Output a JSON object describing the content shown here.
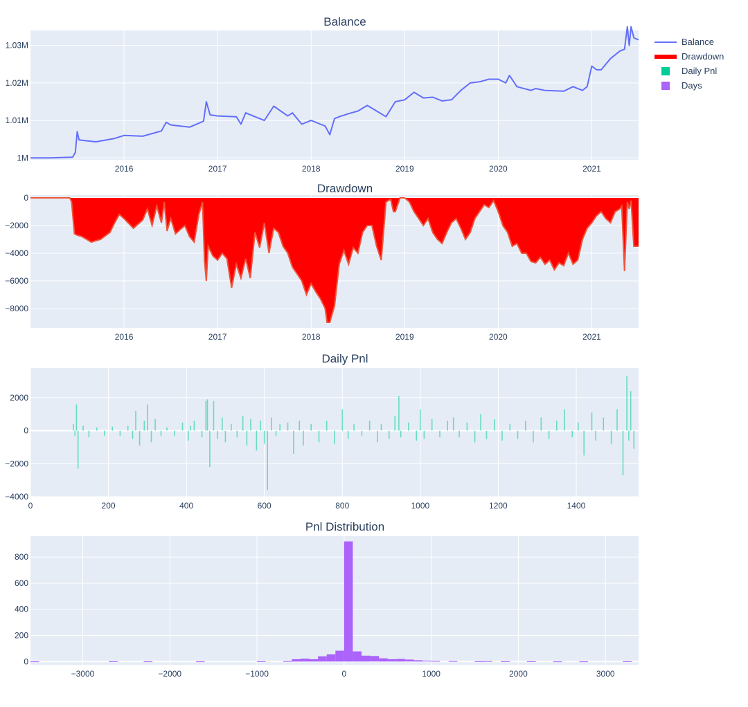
{
  "colors": {
    "plot_bg": "#e5ecf6",
    "grid": "#ffffff",
    "text": "#2a3f5f",
    "balance": "#636efa",
    "drawdown": "#ff0000",
    "drawdown_line": "#ef553b",
    "daily_pnl": "#00cc96",
    "days": "#ab63fa"
  },
  "legend": {
    "position": "top-right",
    "items": [
      {
        "label": "Balance",
        "kind": "line",
        "color": "#636efa"
      },
      {
        "label": "Drawdown",
        "kind": "thickline",
        "color": "#ff0000"
      },
      {
        "label": "Daily Pnl",
        "kind": "square",
        "color": "#00cc96"
      },
      {
        "label": "Days",
        "kind": "square",
        "color": "#ab63fa"
      }
    ]
  },
  "chart_data": [
    {
      "id": "balance",
      "type": "line",
      "title": "Balance",
      "xlabel": "",
      "ylabel": "",
      "xlim": [
        2015.0,
        2021.5
      ],
      "ylim": [
        999500,
        1034000
      ],
      "xticks": [
        2016,
        2017,
        2018,
        2019,
        2020,
        2021
      ],
      "xtick_labels": [
        "2016",
        "2017",
        "2018",
        "2019",
        "2020",
        "2021"
      ],
      "yticks": [
        1000000,
        1010000,
        1020000,
        1030000
      ],
      "ytick_labels": [
        "1M",
        "1.01M",
        "1.02M",
        "1.03M"
      ],
      "grid": true,
      "series": [
        {
          "name": "Balance",
          "x": [
            2015.0,
            2015.2,
            2015.45,
            2015.48,
            2015.5,
            2015.52,
            2015.55,
            2015.7,
            2015.9,
            2016.0,
            2016.2,
            2016.4,
            2016.45,
            2016.5,
            2016.7,
            2016.85,
            2016.88,
            2016.92,
            2017.0,
            2017.2,
            2017.25,
            2017.3,
            2017.4,
            2017.5,
            2017.6,
            2017.75,
            2017.8,
            2017.9,
            2018.0,
            2018.1,
            2018.15,
            2018.2,
            2018.25,
            2018.3,
            2018.4,
            2018.5,
            2018.6,
            2018.7,
            2018.8,
            2018.9,
            2019.0,
            2019.1,
            2019.2,
            2019.3,
            2019.4,
            2019.5,
            2019.6,
            2019.7,
            2019.8,
            2019.9,
            2020.0,
            2020.08,
            2020.12,
            2020.2,
            2020.35,
            2020.4,
            2020.5,
            2020.7,
            2020.8,
            2020.9,
            2020.95,
            2021.0,
            2021.05,
            2021.1,
            2021.2,
            2021.3,
            2021.35,
            2021.38,
            2021.4,
            2021.42,
            2021.45,
            2021.5
          ],
          "y": [
            1000000,
            1000000,
            1000200,
            1001500,
            1007000,
            1004800,
            1004700,
            1004300,
            1005200,
            1006000,
            1005800,
            1007200,
            1009500,
            1008800,
            1008200,
            1009800,
            1015000,
            1011500,
            1011200,
            1011000,
            1009000,
            1012000,
            1011000,
            1010000,
            1013800,
            1011200,
            1012000,
            1009000,
            1010000,
            1009000,
            1008500,
            1006200,
            1010500,
            1011000,
            1011800,
            1012500,
            1014000,
            1012500,
            1011000,
            1015000,
            1015500,
            1017500,
            1016000,
            1016200,
            1015200,
            1015500,
            1018000,
            1020000,
            1020300,
            1021000,
            1021000,
            1020000,
            1022000,
            1019000,
            1018000,
            1018500,
            1018000,
            1017800,
            1019000,
            1018000,
            1019000,
            1024500,
            1023500,
            1023500,
            1026500,
            1028500,
            1029000,
            1035000,
            1030000,
            1035000,
            1032000,
            1031500
          ]
        }
      ]
    },
    {
      "id": "drawdown",
      "type": "area",
      "title": "Drawdown",
      "xlabel": "",
      "ylabel": "",
      "xlim": [
        2015.0,
        2021.5
      ],
      "ylim": [
        -9400,
        200
      ],
      "xticks": [
        2016,
        2017,
        2018,
        2019,
        2020,
        2021
      ],
      "xtick_labels": [
        "2016",
        "2017",
        "2018",
        "2019",
        "2020",
        "2021"
      ],
      "yticks": [
        0,
        -2000,
        -4000,
        -6000,
        -8000
      ],
      "ytick_labels": [
        "0",
        "−2000",
        "−4000",
        "−6000",
        "−8000"
      ],
      "grid": true,
      "series": [
        {
          "name": "Drawdown",
          "x": [
            2015.0,
            2015.42,
            2015.44,
            2015.47,
            2015.5,
            2015.55,
            2015.65,
            2015.75,
            2015.85,
            2015.9,
            2015.95,
            2016.0,
            2016.1,
            2016.2,
            2016.25,
            2016.3,
            2016.35,
            2016.4,
            2016.43,
            2016.46,
            2016.5,
            2016.55,
            2016.6,
            2016.65,
            2016.7,
            2016.75,
            2016.8,
            2016.84,
            2016.86,
            2016.88,
            2016.9,
            2016.95,
            2017.0,
            2017.05,
            2017.1,
            2017.15,
            2017.2,
            2017.25,
            2017.3,
            2017.35,
            2017.4,
            2017.45,
            2017.5,
            2017.55,
            2017.6,
            2017.65,
            2017.7,
            2017.75,
            2017.8,
            2017.85,
            2017.9,
            2017.95,
            2018.0,
            2018.05,
            2018.1,
            2018.15,
            2018.17,
            2018.2,
            2018.25,
            2018.3,
            2018.35,
            2018.4,
            2018.45,
            2018.5,
            2018.55,
            2018.6,
            2018.65,
            2018.7,
            2018.75,
            2018.8,
            2018.85,
            2018.88,
            2018.9,
            2018.95,
            2019.0,
            2019.05,
            2019.1,
            2019.15,
            2019.2,
            2019.25,
            2019.3,
            2019.35,
            2019.4,
            2019.45,
            2019.5,
            2019.55,
            2019.6,
            2019.65,
            2019.7,
            2019.75,
            2019.8,
            2019.85,
            2019.9,
            2019.95,
            2020.0,
            2020.05,
            2020.1,
            2020.15,
            2020.2,
            2020.25,
            2020.3,
            2020.35,
            2020.4,
            2020.45,
            2020.5,
            2020.55,
            2020.6,
            2020.65,
            2020.7,
            2020.75,
            2020.8,
            2020.85,
            2020.9,
            2020.95,
            2021.0,
            2021.05,
            2021.1,
            2021.15,
            2021.2,
            2021.25,
            2021.3,
            2021.32,
            2021.35,
            2021.38,
            2021.4,
            2021.42,
            2021.45,
            2021.5
          ],
          "y": [
            0,
            0,
            -300,
            -2600,
            -2700,
            -2800,
            -3200,
            -3000,
            -2500,
            -1800,
            -1200,
            -1500,
            -2200,
            -1600,
            -800,
            -2000,
            -600,
            -1800,
            -300,
            -2400,
            -1500,
            -2600,
            -2300,
            -2000,
            -2800,
            -3200,
            -1200,
            -300,
            -4500,
            -6000,
            -3500,
            -4200,
            -4500,
            -4000,
            -4400,
            -6500,
            -4800,
            -5800,
            -4400,
            -5800,
            -2500,
            -3600,
            -1800,
            -4000,
            -2200,
            -2500,
            -3500,
            -4000,
            -5000,
            -5500,
            -6000,
            -7000,
            -6200,
            -6800,
            -7300,
            -8000,
            -9000,
            -9000,
            -7800,
            -4800,
            -3800,
            -4800,
            -3600,
            -4000,
            -2500,
            -2000,
            -2000,
            -3500,
            -4500,
            -300,
            -100,
            -1000,
            -1000,
            0,
            0,
            -300,
            -1000,
            -1500,
            -2000,
            -1500,
            -2500,
            -3000,
            -3300,
            -2500,
            -1800,
            -1500,
            -2200,
            -3000,
            -2500,
            -1500,
            -1000,
            -500,
            -700,
            -200,
            -1000,
            -2000,
            -2500,
            -3500,
            -3300,
            -4000,
            -4000,
            -4600,
            -4700,
            -4300,
            -4800,
            -4500,
            -5200,
            -4700,
            -4900,
            -4000,
            -4800,
            -4500,
            -3000,
            -2200,
            -1800,
            -1300,
            -1000,
            -1500,
            -1800,
            -1000,
            -800,
            -600,
            -5300,
            -300,
            -800,
            -200,
            -3500,
            -3500
          ]
        }
      ]
    },
    {
      "id": "daily_pnl",
      "type": "bar",
      "title": "Daily Pnl",
      "xlabel": "",
      "ylabel": "",
      "xlim": [
        0,
        1560
      ],
      "ylim": [
        -4000,
        3800
      ],
      "xticks": [
        0,
        200,
        400,
        600,
        800,
        1000,
        1200,
        1400
      ],
      "xtick_labels": [
        "0",
        "200",
        "400",
        "600",
        "800",
        "1000",
        "1200",
        "1400"
      ],
      "yticks": [
        2000,
        0,
        -2000,
        -4000
      ],
      "ytick_labels": [
        "2000",
        "0",
        "−2000",
        "−4000"
      ],
      "grid": true,
      "series": [
        {
          "name": "Daily Pnl",
          "x": [
            110,
            114,
            118,
            122,
            135,
            150,
            170,
            190,
            210,
            230,
            250,
            262,
            270,
            280,
            292,
            300,
            310,
            320,
            335,
            350,
            370,
            390,
            405,
            410,
            420,
            440,
            450,
            454,
            460,
            470,
            480,
            492,
            500,
            515,
            530,
            545,
            555,
            565,
            580,
            590,
            600,
            608,
            618,
            630,
            640,
            660,
            675,
            690,
            700,
            720,
            740,
            760,
            780,
            800,
            815,
            830,
            850,
            870,
            890,
            900,
            920,
            935,
            945,
            950,
            970,
            990,
            1000,
            1010,
            1030,
            1050,
            1070,
            1085,
            1100,
            1120,
            1140,
            1155,
            1170,
            1190,
            1210,
            1230,
            1250,
            1270,
            1290,
            1310,
            1330,
            1350,
            1370,
            1390,
            1405,
            1420,
            1440,
            1450,
            1470,
            1490,
            1505,
            1520,
            1530,
            1535,
            1540,
            1548
          ],
          "y": [
            400,
            -300,
            1600,
            -2300,
            300,
            -400,
            200,
            -300,
            250,
            -300,
            300,
            -500,
            1200,
            -900,
            600,
            1600,
            -700,
            700,
            -300,
            200,
            -300,
            500,
            -600,
            300,
            600,
            -400,
            1800,
            1900,
            -2200,
            1800,
            -500,
            800,
            -700,
            400,
            -400,
            900,
            -900,
            700,
            -1200,
            600,
            -800,
            -3600,
            800,
            -300,
            400,
            500,
            -1400,
            600,
            -900,
            400,
            -700,
            600,
            -800,
            1300,
            -500,
            400,
            -300,
            600,
            -700,
            400,
            -500,
            900,
            2100,
            -400,
            500,
            -600,
            1300,
            -500,
            700,
            -400,
            600,
            800,
            -400,
            500,
            -700,
            1000,
            -500,
            700,
            -600,
            400,
            -500,
            600,
            -700,
            800,
            -500,
            600,
            1300,
            -400,
            500,
            -1500,
            1100,
            -600,
            800,
            -800,
            1300,
            -2700,
            3300,
            -600,
            2400,
            -1100
          ]
        }
      ]
    },
    {
      "id": "pnl_distribution",
      "type": "bar",
      "title": "Pnl Distribution",
      "xlabel": "",
      "ylabel": "",
      "xlim": [
        -3600,
        3380
      ],
      "ylim": [
        -25,
        960
      ],
      "xticks": [
        -3000,
        -2000,
        -1000,
        0,
        1000,
        2000,
        3000
      ],
      "xtick_labels": [
        "−3000",
        "−2000",
        "−1000",
        "0",
        "1000",
        "2000",
        "3000"
      ],
      "yticks": [
        0,
        200,
        400,
        600,
        800
      ],
      "ytick_labels": [
        "0",
        "200",
        "400",
        "600",
        "800"
      ],
      "grid": true,
      "bin_width": 100,
      "series": [
        {
          "name": "Days",
          "bin_start": [
            -3600,
            -2700,
            -2300,
            -1700,
            -1000,
            -700,
            -600,
            -500,
            -400,
            -300,
            -200,
            -100,
            0,
            100,
            200,
            300,
            400,
            500,
            600,
            700,
            800,
            900,
            1000,
            1200,
            1500,
            1600,
            1800,
            2100,
            2400,
            2700,
            3200
          ],
          "counts": [
            1,
            2,
            1,
            1,
            2,
            3,
            18,
            22,
            18,
            40,
            55,
            83,
            920,
            78,
            45,
            42,
            25,
            18,
            20,
            15,
            10,
            6,
            4,
            3,
            2,
            3,
            2,
            2,
            1,
            1,
            2
          ]
        }
      ]
    }
  ]
}
